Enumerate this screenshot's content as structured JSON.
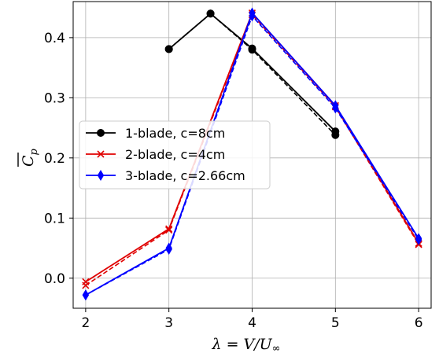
{
  "chart_data": {
    "type": "line",
    "xlabel": "λ = V/U∞",
    "ylabel": "C̅p",
    "xlim": [
      1.85,
      6.15
    ],
    "ylim": [
      -0.05,
      0.46
    ],
    "xticks": [
      "2",
      "3",
      "4",
      "5",
      "6"
    ],
    "yticks": [
      "0.0",
      "0.1",
      "0.2",
      "0.3",
      "0.4"
    ],
    "grid": true,
    "legend_position": "center-left",
    "series": [
      {
        "name": "1-blade, c=8cm",
        "color": "#000000",
        "marker": "circle",
        "x": [
          3,
          3.5,
          4,
          5
        ],
        "y": [
          0.381,
          0.44,
          0.382,
          0.244
        ],
        "dashed_y": [
          0.381,
          0.44,
          0.38,
          0.238
        ]
      },
      {
        "name": "2-blade, c=4cm",
        "color": "#e00000",
        "marker": "x",
        "x": [
          2,
          3,
          4,
          5,
          6
        ],
        "y": [
          -0.006,
          0.082,
          0.441,
          0.287,
          0.058
        ],
        "dashed_y": [
          -0.012,
          0.08,
          0.438,
          0.285,
          0.056
        ]
      },
      {
        "name": "3-blade, c=2.66cm",
        "color": "#0000ff",
        "marker": "diamond",
        "x": [
          2,
          3,
          4,
          5,
          6
        ],
        "y": [
          -0.028,
          0.05,
          0.441,
          0.287,
          0.066
        ],
        "dashed_y": [
          -0.028,
          0.048,
          0.436,
          0.283,
          0.064
        ]
      }
    ]
  }
}
